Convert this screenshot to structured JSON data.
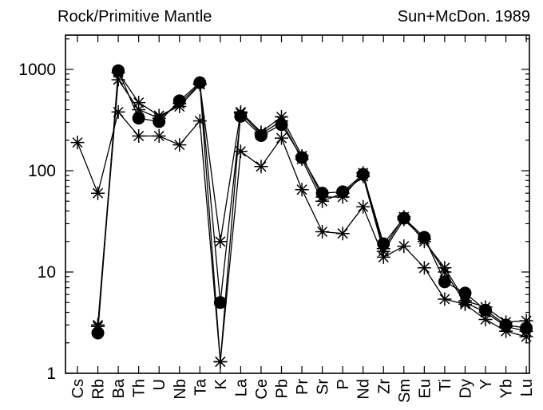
{
  "header": {
    "left": "Rock/Primitive Mantle",
    "right": "Sun+McDon. 1989"
  },
  "chart_data": {
    "type": "line",
    "title": "Rock/Primitive Mantle",
    "subtitle": "Sun+McDon. 1989",
    "xlabel": "",
    "ylabel": "",
    "yscale": "log",
    "ylim": [
      1,
      2000
    ],
    "yticks": [
      1,
      10,
      100,
      1000
    ],
    "ytick_labels": [
      "1",
      "10",
      "100",
      "1000"
    ],
    "grid": false,
    "legend": "none",
    "categories": [
      "Cs",
      "Rb",
      "Ba",
      "Th",
      "U",
      "Nb",
      "Ta",
      "K",
      "La",
      "Ce",
      "Pb",
      "Pr",
      "Sr",
      "P",
      "Nd",
      "Zr",
      "Sm",
      "Eu",
      "Ti",
      "Dy",
      "Y",
      "Yb",
      "Lu"
    ],
    "series": [
      {
        "marker": "circle",
        "values": [
          null,
          2.5,
          970,
          330,
          305,
          490,
          740,
          5.0,
          345,
          222,
          285,
          135,
          60,
          62,
          92,
          19,
          34,
          22,
          8.0,
          6.2,
          4.2,
          3.0,
          2.8
        ]
      },
      {
        "marker": "asterisk",
        "values": [
          null,
          3.0,
          930,
          470,
          350,
          430,
          710,
          20,
          380,
          240,
          340,
          140,
          55,
          55,
          95,
          17,
          35,
          20,
          11,
          5.2,
          4.5,
          3.2,
          3.3
        ]
      },
      {
        "marker": "asterisk",
        "values": [
          null,
          2.9,
          790,
          400,
          330,
          460,
          720,
          1.3,
          370,
          230,
          310,
          130,
          50,
          60,
          88,
          16,
          33,
          21,
          10,
          5.0,
          4.0,
          2.9,
          2.6
        ]
      },
      {
        "marker": "asterisk",
        "values": [
          190,
          60,
          380,
          220,
          220,
          180,
          310,
          1.3,
          155,
          110,
          210,
          65,
          25,
          24,
          44,
          14,
          18,
          11,
          5.4,
          4.8,
          3.4,
          2.6,
          2.3
        ]
      }
    ]
  }
}
